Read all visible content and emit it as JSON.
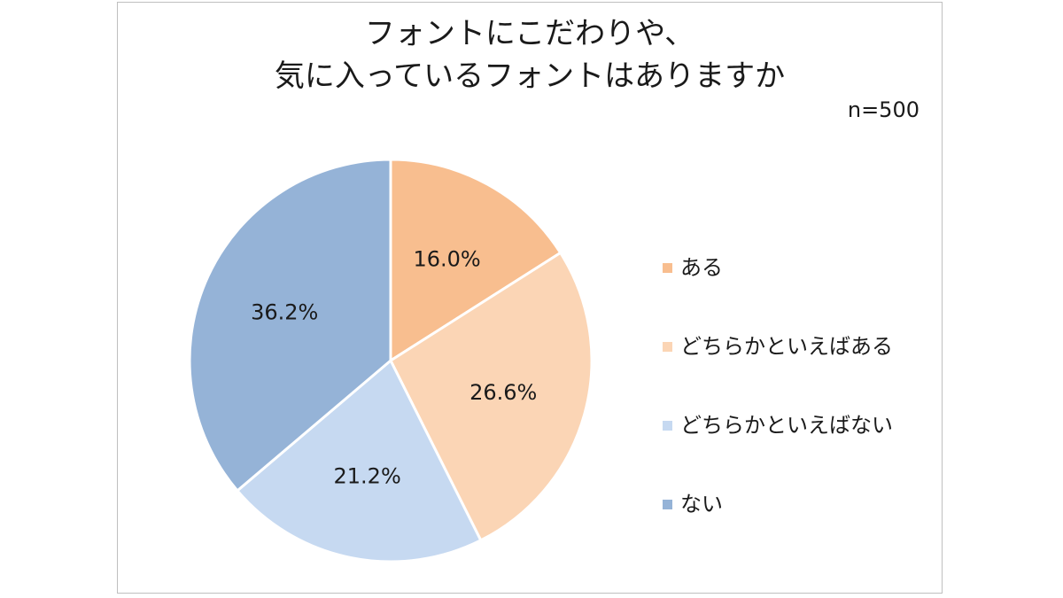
{
  "chart_data": {
    "type": "pie",
    "title_lines": [
      "フォントにこだわりや、",
      "気に入っているフォントはありますか"
    ],
    "subtitle": "n=500",
    "categories": [
      "ある",
      "どちらかといえばある",
      "どちらかといえばない",
      "ない"
    ],
    "values": [
      16.0,
      26.6,
      21.2,
      36.2
    ],
    "value_labels": [
      "16.0%",
      "26.6%",
      "21.2%",
      "36.2%"
    ],
    "colors": [
      "#f8be8f",
      "#fbd5b5",
      "#c6d9f1",
      "#95b3d7"
    ],
    "legend_position": "right",
    "start_angle": "top",
    "direction": "clockwise"
  }
}
